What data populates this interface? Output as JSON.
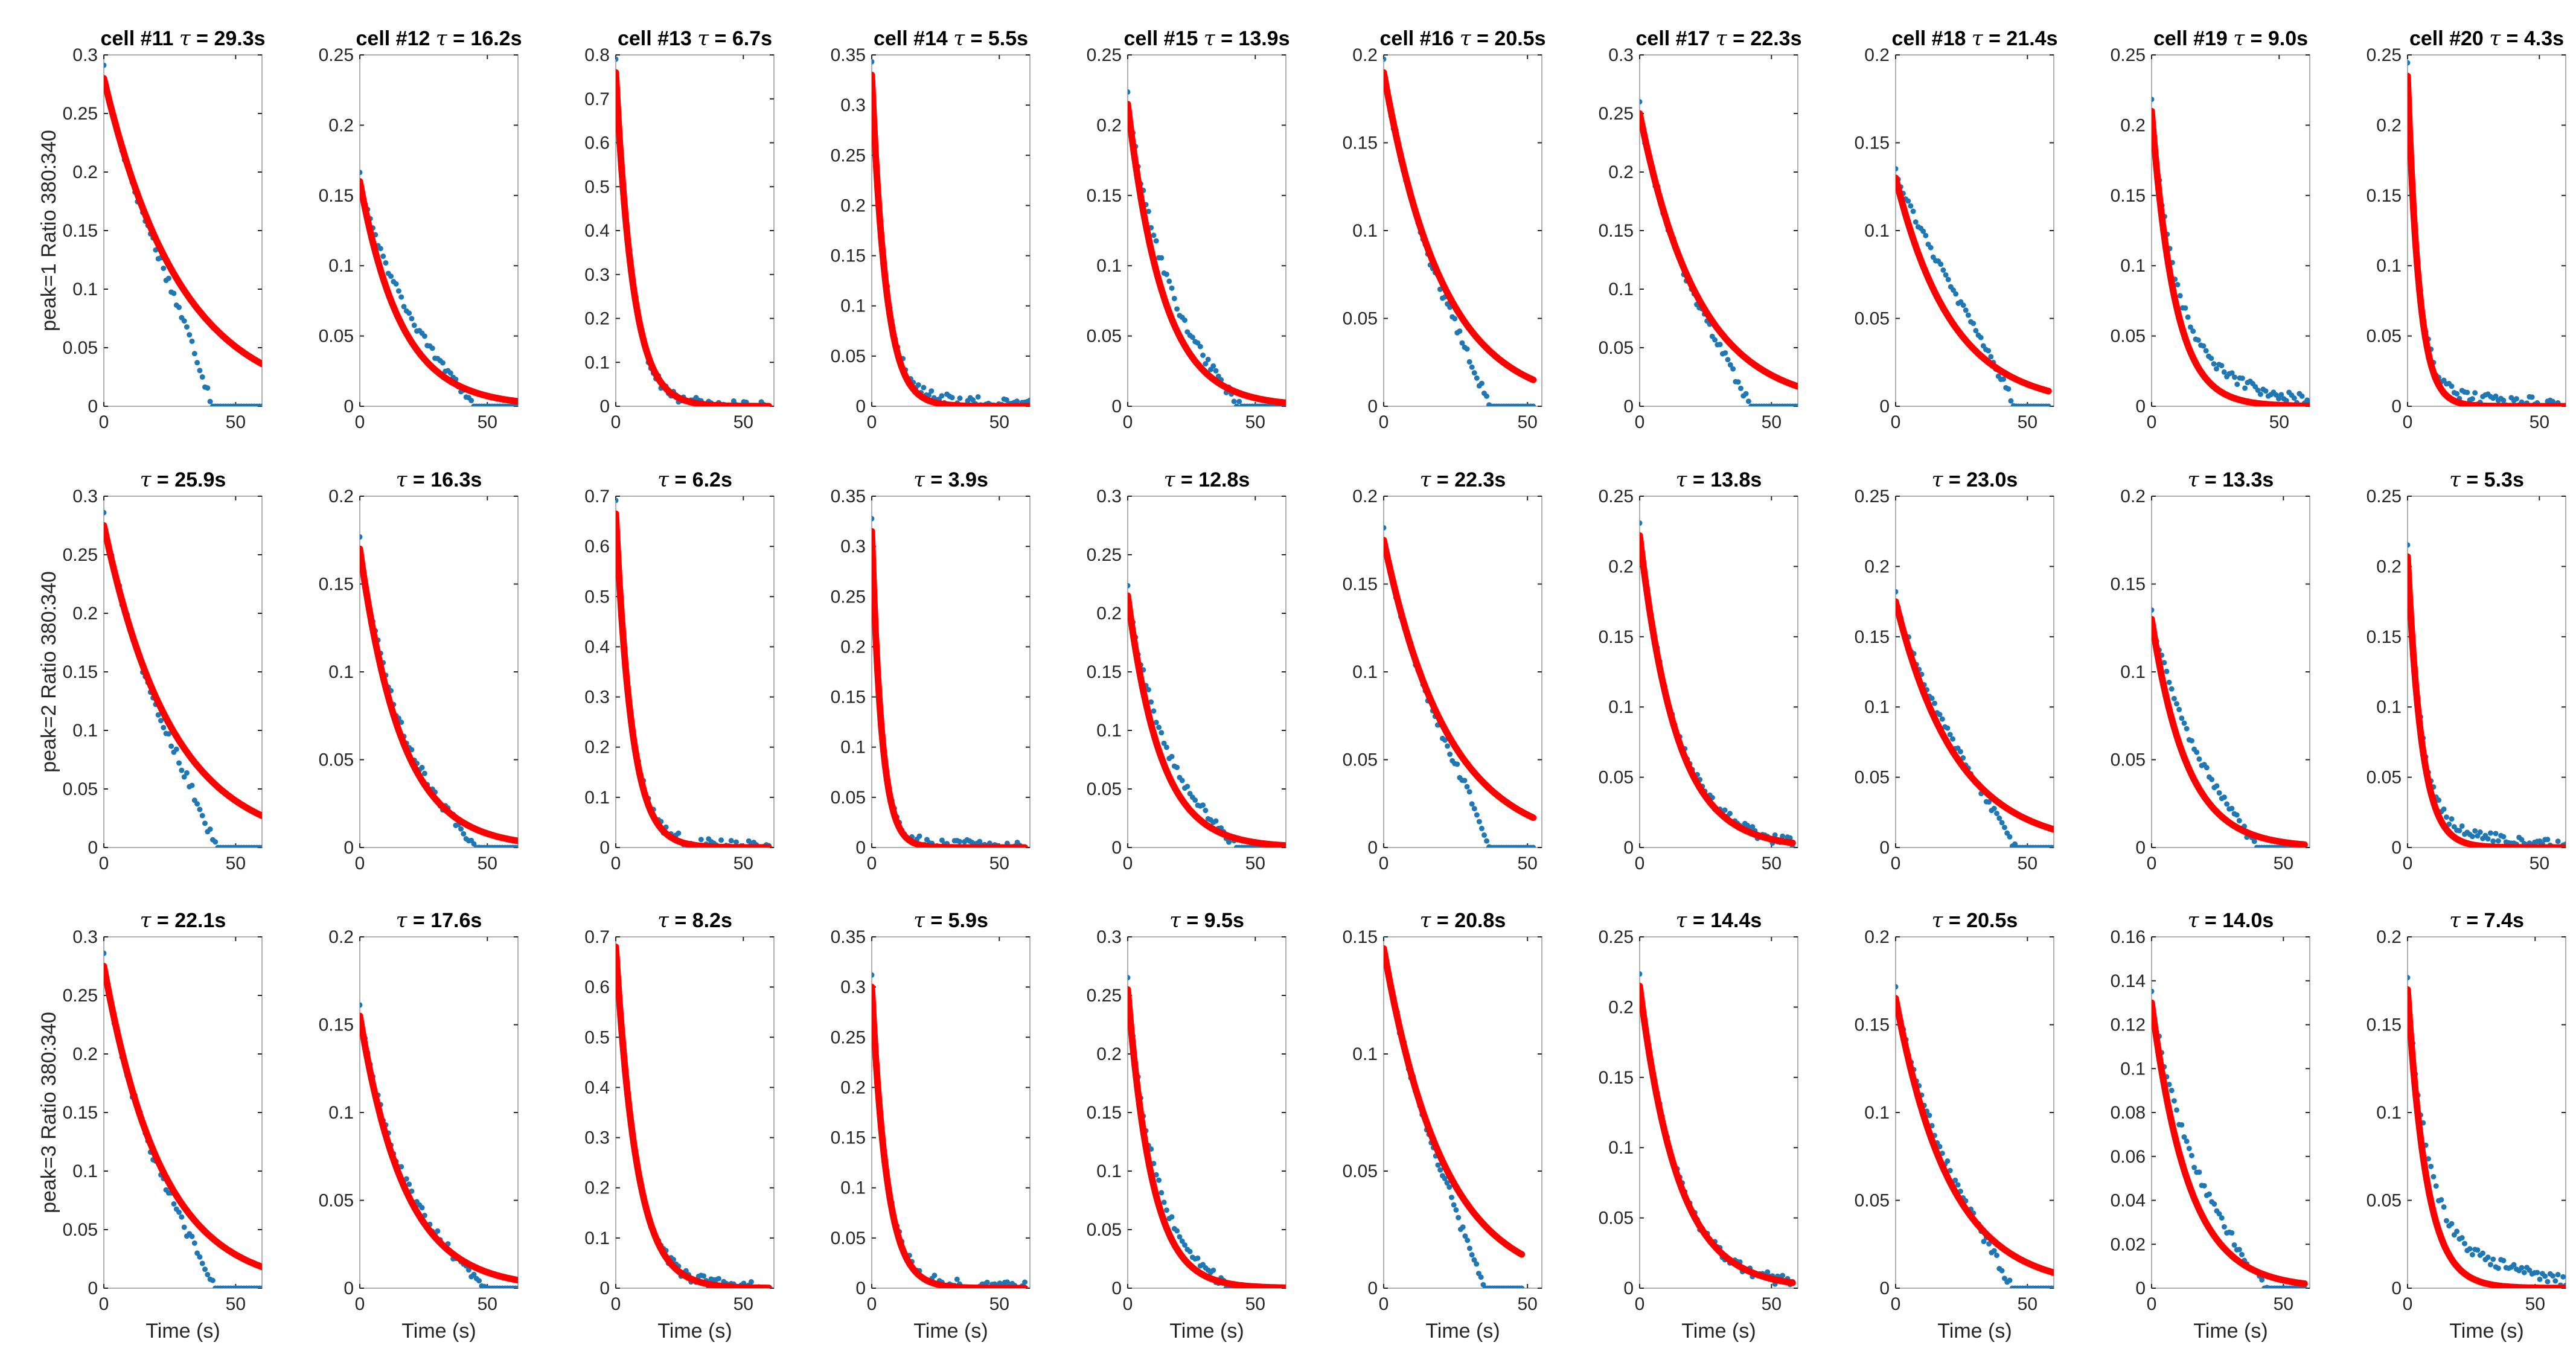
{
  "figure": {
    "colors": {
      "data": "#1f77b4",
      "fit": "#ff0000",
      "axis": "#262626",
      "frame": "#b0b0b0"
    },
    "tau_symbol": "τ",
    "tau_sep": " = ",
    "x_label": "Time (s)",
    "row_labels": [
      "peak=1 Ratio 380:340",
      "peak=2 Ratio 380:340",
      "peak=3 Ratio 380:340"
    ]
  },
  "chart_data": [
    {
      "type": "scatter",
      "row": 0,
      "col": 0,
      "cell": "cell #11",
      "tau_label": "29.3s",
      "tau": 29.3,
      "A": 0.28,
      "xmax": 60,
      "tail": 0.0,
      "drop": 0.035,
      "xlim": [
        0,
        60
      ],
      "ylim": [
        0,
        0.3
      ],
      "xticks": [
        0,
        50
      ],
      "yticks": [
        0,
        0.05,
        0.1,
        0.15,
        0.2,
        0.25,
        0.3
      ],
      "ytick_labels": [
        "0",
        "0.05",
        "0.1",
        "0.15",
        "0.2",
        "0.25",
        "0.3"
      ]
    },
    {
      "type": "scatter",
      "row": 0,
      "col": 1,
      "cell": "cell #12",
      "tau_label": "16.2s",
      "tau": 16.2,
      "A": 0.16,
      "xmax": 62,
      "tail": 0.03,
      "drop": 0.01,
      "xlim": [
        0,
        62
      ],
      "ylim": [
        0,
        0.25
      ],
      "xticks": [
        0,
        50
      ],
      "yticks": [
        0,
        0.05,
        0.1,
        0.15,
        0.2,
        0.25
      ],
      "ytick_labels": [
        "0",
        "0.05",
        "0.1",
        "0.15",
        "0.2",
        "0.25"
      ]
    },
    {
      "type": "scatter",
      "row": 0,
      "col": 2,
      "cell": "cell #13",
      "tau_label": "6.7s",
      "tau": 6.7,
      "A": 0.76,
      "xmax": 60,
      "tail": 0.0,
      "drop": 0.0,
      "xlim": [
        0,
        62
      ],
      "ylim": [
        0,
        0.8
      ],
      "xticks": [
        0,
        50
      ],
      "yticks": [
        0,
        0.1,
        0.2,
        0.3,
        0.4,
        0.5,
        0.6,
        0.7,
        0.8
      ],
      "ytick_labels": [
        "0",
        "0.1",
        "0.2",
        "0.3",
        "0.4",
        "0.5",
        "0.6",
        "0.7",
        "0.8"
      ]
    },
    {
      "type": "scatter",
      "row": 0,
      "col": 3,
      "cell": "cell #14",
      "tau_label": "5.5s",
      "tau": 5.5,
      "A": 0.33,
      "xmax": 62,
      "tail": 0.008,
      "drop": 0.0,
      "xlim": [
        0,
        62
      ],
      "ylim": [
        0,
        0.35
      ],
      "xticks": [
        0,
        50
      ],
      "yticks": [
        0,
        0.05,
        0.1,
        0.15,
        0.2,
        0.25,
        0.3,
        0.35
      ],
      "ytick_labels": [
        "0",
        "0.05",
        "0.1",
        "0.15",
        "0.2",
        "0.25",
        "0.3",
        "0.35"
      ]
    },
    {
      "type": "scatter",
      "row": 0,
      "col": 4,
      "cell": "cell #15",
      "tau_label": "13.9s",
      "tau": 13.9,
      "A": 0.215,
      "xmax": 62,
      "tail": 0.03,
      "drop": 0.01,
      "xlim": [
        0,
        62
      ],
      "ylim": [
        0,
        0.25
      ],
      "xticks": [
        0,
        50
      ],
      "yticks": [
        0,
        0.05,
        0.1,
        0.15,
        0.2,
        0.25
      ],
      "ytick_labels": [
        "0",
        "0.05",
        "0.1",
        "0.15",
        "0.2",
        "0.25"
      ]
    },
    {
      "type": "scatter",
      "row": 0,
      "col": 5,
      "cell": "cell #16",
      "tau_label": "20.5s",
      "tau": 20.5,
      "A": 0.19,
      "xmax": 52,
      "tail": 0.0,
      "drop": 0.015,
      "xlim": [
        0,
        55
      ],
      "ylim": [
        0,
        0.2
      ],
      "xticks": [
        0,
        50
      ],
      "yticks": [
        0,
        0.05,
        0.1,
        0.15,
        0.2
      ],
      "ytick_labels": [
        "0",
        "0.05",
        "0.1",
        "0.15",
        "0.2"
      ]
    },
    {
      "type": "scatter",
      "row": 0,
      "col": 6,
      "cell": "cell #17",
      "tau_label": "22.3s",
      "tau": 22.3,
      "A": 0.25,
      "xmax": 60,
      "tail": 0.0,
      "drop": 0.018,
      "xlim": [
        0,
        60
      ],
      "ylim": [
        0,
        0.3
      ],
      "xticks": [
        0,
        50
      ],
      "yticks": [
        0,
        0.05,
        0.1,
        0.15,
        0.2,
        0.25,
        0.3
      ],
      "ytick_labels": [
        "0",
        "0.05",
        "0.1",
        "0.15",
        "0.2",
        "0.25",
        "0.3"
      ]
    },
    {
      "type": "scatter",
      "row": 0,
      "col": 7,
      "cell": "cell #18",
      "tau_label": "21.4s",
      "tau": 21.4,
      "A": 0.13,
      "xmax": 58,
      "tail": 0.04,
      "drop": 0.01,
      "xlim": [
        0,
        60
      ],
      "ylim": [
        0,
        0.2
      ],
      "xticks": [
        0,
        50
      ],
      "yticks": [
        0,
        0.05,
        0.1,
        0.15,
        0.2
      ],
      "ytick_labels": [
        "0",
        "0.05",
        "0.1",
        "0.15",
        "0.2"
      ]
    },
    {
      "type": "scatter",
      "row": 0,
      "col": 8,
      "cell": "cell #19",
      "tau_label": "9.0s",
      "tau": 9.0,
      "A": 0.21,
      "xmax": 62,
      "tail": 0.025,
      "drop": 0.0,
      "xlim": [
        0,
        62
      ],
      "ylim": [
        0,
        0.25
      ],
      "xticks": [
        0,
        50
      ],
      "yticks": [
        0,
        0.05,
        0.1,
        0.15,
        0.2,
        0.25
      ],
      "ytick_labels": [
        "0",
        "0.05",
        "0.1",
        "0.15",
        "0.2",
        "0.25"
      ]
    },
    {
      "type": "scatter",
      "row": 0,
      "col": 9,
      "cell": "cell #20",
      "tau_label": "4.3s",
      "tau": 4.3,
      "A": 0.235,
      "xmax": 60,
      "tail": 0.008,
      "drop": 0.0,
      "xlim": [
        0,
        60
      ],
      "ylim": [
        0,
        0.25
      ],
      "xticks": [
        0,
        50
      ],
      "yticks": [
        0,
        0.05,
        0.1,
        0.15,
        0.2,
        0.25
      ],
      "ytick_labels": [
        "0",
        "0.05",
        "0.1",
        "0.15",
        "0.2",
        "0.25"
      ]
    },
    {
      "type": "scatter",
      "row": 1,
      "col": 0,
      "cell": "",
      "tau_label": "25.9s",
      "tau": 25.9,
      "A": 0.275,
      "xmax": 60,
      "tail": 0.0,
      "drop": 0.025,
      "xlim": [
        0,
        60
      ],
      "ylim": [
        0,
        0.3
      ],
      "xticks": [
        0,
        50
      ],
      "yticks": [
        0,
        0.05,
        0.1,
        0.15,
        0.2,
        0.25,
        0.3
      ],
      "ytick_labels": [
        "0",
        "0.05",
        "0.1",
        "0.15",
        "0.2",
        "0.25",
        "0.3"
      ]
    },
    {
      "type": "scatter",
      "row": 1,
      "col": 1,
      "cell": "",
      "tau_label": "16.3s",
      "tau": 16.3,
      "A": 0.17,
      "xmax": 62,
      "tail": 0.012,
      "drop": 0.006,
      "xlim": [
        0,
        62
      ],
      "ylim": [
        0,
        0.2
      ],
      "xticks": [
        0,
        50
      ],
      "yticks": [
        0,
        0.05,
        0.1,
        0.15,
        0.2
      ],
      "ytick_labels": [
        "0",
        "0.05",
        "0.1",
        "0.15",
        "0.2"
      ]
    },
    {
      "type": "scatter",
      "row": 1,
      "col": 2,
      "cell": "",
      "tau_label": "6.2s",
      "tau": 6.2,
      "A": 0.665,
      "xmax": 60,
      "tail": 0.008,
      "drop": 0.0,
      "xlim": [
        0,
        62
      ],
      "ylim": [
        0,
        0.7
      ],
      "xticks": [
        0,
        50
      ],
      "yticks": [
        0,
        0.1,
        0.2,
        0.3,
        0.4,
        0.5,
        0.6,
        0.7
      ],
      "ytick_labels": [
        "0",
        "0.1",
        "0.2",
        "0.3",
        "0.4",
        "0.5",
        "0.6",
        "0.7"
      ]
    },
    {
      "type": "scatter",
      "row": 1,
      "col": 3,
      "cell": "",
      "tau_label": "3.9s",
      "tau": 3.9,
      "A": 0.315,
      "xmax": 60,
      "tail": 0.005,
      "drop": 0.0,
      "xlim": [
        0,
        62
      ],
      "ylim": [
        0,
        0.35
      ],
      "xticks": [
        0,
        50
      ],
      "yticks": [
        0,
        0.05,
        0.1,
        0.15,
        0.2,
        0.25,
        0.3,
        0.35
      ],
      "ytick_labels": [
        "0",
        "0.05",
        "0.1",
        "0.15",
        "0.2",
        "0.25",
        "0.3",
        "0.35"
      ]
    },
    {
      "type": "scatter",
      "row": 1,
      "col": 4,
      "cell": "",
      "tau_label": "12.8s",
      "tau": 12.8,
      "A": 0.215,
      "xmax": 62,
      "tail": 0.03,
      "drop": 0.01,
      "xlim": [
        0,
        62
      ],
      "ylim": [
        0,
        0.3
      ],
      "xticks": [
        0,
        50
      ],
      "yticks": [
        0,
        0.05,
        0.1,
        0.15,
        0.2,
        0.25,
        0.3
      ],
      "ytick_labels": [
        "0",
        "0.05",
        "0.1",
        "0.15",
        "0.2",
        "0.25",
        "0.3"
      ]
    },
    {
      "type": "scatter",
      "row": 1,
      "col": 5,
      "cell": "",
      "tau_label": "22.3s",
      "tau": 22.3,
      "A": 0.175,
      "xmax": 52,
      "tail": 0.0,
      "drop": 0.015,
      "xlim": [
        0,
        55
      ],
      "ylim": [
        0,
        0.2
      ],
      "xticks": [
        0,
        50
      ],
      "yticks": [
        0,
        0.05,
        0.1,
        0.15,
        0.2
      ],
      "ytick_labels": [
        "0",
        "0.05",
        "0.1",
        "0.15",
        "0.2"
      ]
    },
    {
      "type": "scatter",
      "row": 1,
      "col": 6,
      "cell": "",
      "tau_label": "13.8s",
      "tau": 13.8,
      "A": 0.222,
      "xmax": 58,
      "tail": 0.004,
      "drop": 0.0,
      "xlim": [
        0,
        60
      ],
      "ylim": [
        0,
        0.25
      ],
      "xticks": [
        0,
        50
      ],
      "yticks": [
        0,
        0.05,
        0.1,
        0.15,
        0.2,
        0.25
      ],
      "ytick_labels": [
        "0",
        "0.05",
        "0.1",
        "0.15",
        "0.2",
        "0.25"
      ]
    },
    {
      "type": "scatter",
      "row": 1,
      "col": 7,
      "cell": "",
      "tau_label": "23.0s",
      "tau": 23.0,
      "A": 0.175,
      "xmax": 60,
      "tail": 0.02,
      "drop": 0.012,
      "xlim": [
        0,
        60
      ],
      "ylim": [
        0,
        0.25
      ],
      "xticks": [
        0,
        50
      ],
      "yticks": [
        0,
        0.05,
        0.1,
        0.15,
        0.2,
        0.25
      ],
      "ytick_labels": [
        "0",
        "0.05",
        "0.1",
        "0.15",
        "0.2",
        "0.25"
      ]
    },
    {
      "type": "scatter",
      "row": 1,
      "col": 8,
      "cell": "",
      "tau_label": "13.3s",
      "tau": 13.3,
      "A": 0.13,
      "xmax": 58,
      "tail": 0.03,
      "drop": 0.01,
      "xlim": [
        0,
        60
      ],
      "ylim": [
        0,
        0.2
      ],
      "xticks": [
        0,
        50
      ],
      "yticks": [
        0,
        0.05,
        0.1,
        0.15,
        0.2
      ],
      "ytick_labels": [
        "0",
        "0.05",
        "0.1",
        "0.15",
        "0.2"
      ]
    },
    {
      "type": "scatter",
      "row": 1,
      "col": 9,
      "cell": "",
      "tau_label": "5.3s",
      "tau": 5.3,
      "A": 0.207,
      "xmax": 60,
      "tail": 0.012,
      "drop": 0.0,
      "xlim": [
        0,
        60
      ],
      "ylim": [
        0,
        0.25
      ],
      "xticks": [
        0,
        50
      ],
      "yticks": [
        0,
        0.05,
        0.1,
        0.15,
        0.2,
        0.25
      ],
      "ytick_labels": [
        "0",
        "0.05",
        "0.1",
        "0.15",
        "0.2",
        "0.25"
      ]
    },
    {
      "type": "scatter",
      "row": 2,
      "col": 0,
      "cell": "",
      "tau_label": "22.1s",
      "tau": 22.1,
      "A": 0.275,
      "xmax": 60,
      "tail": 0.0,
      "drop": 0.02,
      "xlim": [
        0,
        60
      ],
      "ylim": [
        0,
        0.3
      ],
      "xticks": [
        0,
        50
      ],
      "yticks": [
        0,
        0.05,
        0.1,
        0.15,
        0.2,
        0.25,
        0.3
      ],
      "ytick_labels": [
        "0",
        "0.05",
        "0.1",
        "0.15",
        "0.2",
        "0.25",
        "0.3"
      ]
    },
    {
      "type": "scatter",
      "row": 2,
      "col": 1,
      "cell": "",
      "tau_label": "17.6s",
      "tau": 17.6,
      "A": 0.155,
      "xmax": 62,
      "tail": 0.01,
      "drop": 0.004,
      "xlim": [
        0,
        62
      ],
      "ylim": [
        0,
        0.2
      ],
      "xticks": [
        0,
        50
      ],
      "yticks": [
        0,
        0.05,
        0.1,
        0.15,
        0.2
      ],
      "ytick_labels": [
        "0",
        "0.05",
        "0.1",
        "0.15",
        "0.2"
      ]
    },
    {
      "type": "scatter",
      "row": 2,
      "col": 2,
      "cell": "",
      "tau_label": "8.2s",
      "tau": 8.2,
      "A": 0.68,
      "xmax": 60,
      "tail": 0.005,
      "drop": 0.0,
      "xlim": [
        0,
        62
      ],
      "ylim": [
        0,
        0.7
      ],
      "xticks": [
        0,
        50
      ],
      "yticks": [
        0,
        0.1,
        0.2,
        0.3,
        0.4,
        0.5,
        0.6,
        0.7
      ],
      "ytick_labels": [
        "0",
        "0.1",
        "0.2",
        "0.3",
        "0.4",
        "0.5",
        "0.6",
        "0.7"
      ]
    },
    {
      "type": "scatter",
      "row": 2,
      "col": 3,
      "cell": "",
      "tau_label": "5.9s",
      "tau": 5.9,
      "A": 0.3,
      "xmax": 60,
      "tail": 0.005,
      "drop": 0.0,
      "xlim": [
        0,
        62
      ],
      "ylim": [
        0,
        0.35
      ],
      "xticks": [
        0,
        50
      ],
      "yticks": [
        0,
        0.05,
        0.1,
        0.15,
        0.2,
        0.25,
        0.3,
        0.35
      ],
      "ytick_labels": [
        "0",
        "0.05",
        "0.1",
        "0.15",
        "0.2",
        "0.25",
        "0.3",
        "0.35"
      ]
    },
    {
      "type": "scatter",
      "row": 2,
      "col": 4,
      "cell": "",
      "tau_label": "9.5s",
      "tau": 9.5,
      "A": 0.255,
      "xmax": 62,
      "tail": 0.025,
      "drop": 0.01,
      "xlim": [
        0,
        62
      ],
      "ylim": [
        0,
        0.3
      ],
      "xticks": [
        0,
        50
      ],
      "yticks": [
        0,
        0.05,
        0.1,
        0.15,
        0.2,
        0.25,
        0.3
      ],
      "ytick_labels": [
        "0",
        "0.05",
        "0.1",
        "0.15",
        "0.2",
        "0.25",
        "0.3"
      ]
    },
    {
      "type": "scatter",
      "row": 2,
      "col": 5,
      "cell": "",
      "tau_label": "20.8s",
      "tau": 20.8,
      "A": 0.145,
      "xmax": 48,
      "tail": 0.0,
      "drop": 0.012,
      "xlim": [
        0,
        55
      ],
      "ylim": [
        0,
        0.15
      ],
      "xticks": [
        0,
        50
      ],
      "yticks": [
        0,
        0.05,
        0.1,
        0.15
      ],
      "ytick_labels": [
        "0",
        "0.05",
        "0.1",
        "0.15"
      ]
    },
    {
      "type": "scatter",
      "row": 2,
      "col": 6,
      "cell": "",
      "tau_label": "14.4s",
      "tau": 14.4,
      "A": 0.215,
      "xmax": 58,
      "tail": 0.002,
      "drop": 0.0,
      "xlim": [
        0,
        60
      ],
      "ylim": [
        0,
        0.25
      ],
      "xticks": [
        0,
        50
      ],
      "yticks": [
        0,
        0.05,
        0.1,
        0.15,
        0.2,
        0.25
      ],
      "ytick_labels": [
        "0",
        "0.05",
        "0.1",
        "0.15",
        "0.2",
        "0.25"
      ]
    },
    {
      "type": "scatter",
      "row": 2,
      "col": 7,
      "cell": "",
      "tau_label": "20.5s",
      "tau": 20.5,
      "A": 0.165,
      "xmax": 60,
      "tail": 0.015,
      "drop": 0.01,
      "xlim": [
        0,
        60
      ],
      "ylim": [
        0,
        0.2
      ],
      "xticks": [
        0,
        50
      ],
      "yticks": [
        0,
        0.05,
        0.1,
        0.15,
        0.2
      ],
      "ytick_labels": [
        "0",
        "0.05",
        "0.1",
        "0.15",
        "0.2"
      ]
    },
    {
      "type": "scatter",
      "row": 2,
      "col": 8,
      "cell": "",
      "tau_label": "14.0s",
      "tau": 14.0,
      "A": 0.13,
      "xmax": 58,
      "tail": 0.025,
      "drop": 0.006,
      "xlim": [
        0,
        60
      ],
      "ylim": [
        0,
        0.16
      ],
      "xticks": [
        0,
        50
      ],
      "yticks": [
        0,
        0.02,
        0.04,
        0.06,
        0.08,
        0.1,
        0.12,
        0.14,
        0.16
      ],
      "ytick_labels": [
        "0",
        "0.02",
        "0.04",
        "0.06",
        "0.08",
        "0.1",
        "0.12",
        "0.14",
        "0.16"
      ]
    },
    {
      "type": "scatter",
      "row": 2,
      "col": 9,
      "cell": "",
      "tau_label": "7.4s",
      "tau": 7.4,
      "A": 0.17,
      "xmax": 62,
      "tail": 0.025,
      "drop": 0.0,
      "xlim": [
        0,
        62
      ],
      "ylim": [
        0,
        0.2
      ],
      "xticks": [
        0,
        50
      ],
      "yticks": [
        0,
        0.05,
        0.1,
        0.15,
        0.2
      ],
      "ytick_labels": [
        "0",
        "0.05",
        "0.1",
        "0.15",
        "0.2"
      ]
    }
  ]
}
